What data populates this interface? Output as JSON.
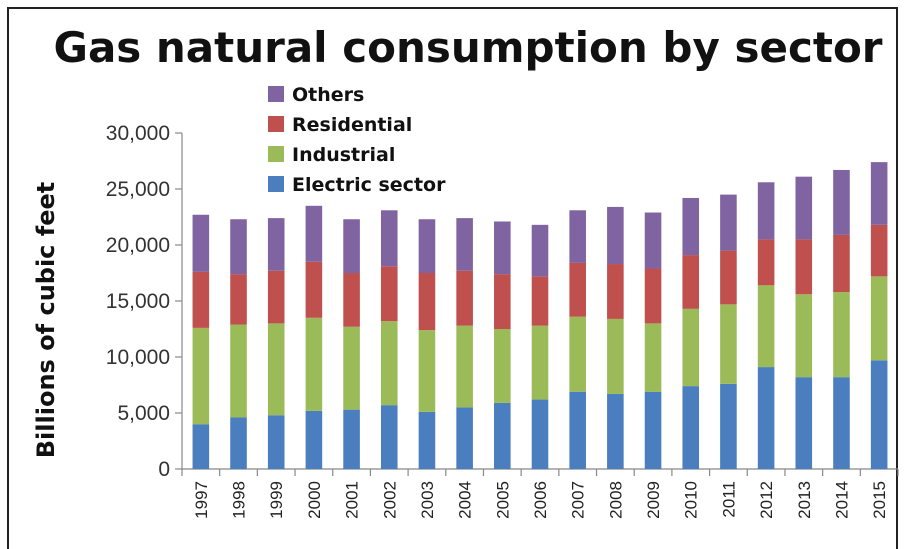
{
  "chart_data": {
    "type": "bar",
    "stacked": true,
    "title": "Gas natural consumption by sector",
    "xlabel": "",
    "ylabel": "Billions of cubic feet",
    "ylim": [
      0,
      30000
    ],
    "yticks": [
      "0",
      "5,000",
      "10,000",
      "15,000",
      "20,000",
      "25,000",
      "30,000"
    ],
    "grid": false,
    "legend_position": "top-left",
    "categories": [
      "1997",
      "1998",
      "1999",
      "2000",
      "2001",
      "2002",
      "2003",
      "2004",
      "2005",
      "2006",
      "2007",
      "2008",
      "2009",
      "2010",
      "2011",
      "2012",
      "2013",
      "2014",
      "2015"
    ],
    "series": [
      {
        "name": "Electric sector",
        "color": "#4a7ebf",
        "values": [
          4000,
          4600,
          4800,
          5200,
          5300,
          5700,
          5100,
          5500,
          5900,
          6200,
          6900,
          6700,
          6900,
          7400,
          7600,
          9100,
          8200,
          8200,
          9700
        ]
      },
      {
        "name": "Industrial",
        "color": "#9bbb59",
        "values": [
          8600,
          8300,
          8200,
          8300,
          7400,
          7500,
          7300,
          7300,
          6600,
          6600,
          6700,
          6700,
          6100,
          6900,
          7100,
          7300,
          7400,
          7600,
          7500
        ]
      },
      {
        "name": "Residential",
        "color": "#c0504d",
        "values": [
          5000,
          4500,
          4700,
          5000,
          4800,
          4900,
          5100,
          4900,
          4900,
          4400,
          4800,
          4900,
          4900,
          4800,
          4800,
          4100,
          4900,
          5100,
          4600
        ]
      },
      {
        "name": "Others",
        "color": "#8064a2",
        "values": [
          5100,
          4900,
          4700,
          5000,
          4800,
          5000,
          4800,
          4700,
          4700,
          4600,
          4700,
          5100,
          5000,
          5100,
          5000,
          5100,
          5600,
          5800,
          5600
        ]
      }
    ],
    "legend_order": [
      "Others",
      "Residential",
      "Industrial",
      "Electric sector"
    ]
  }
}
